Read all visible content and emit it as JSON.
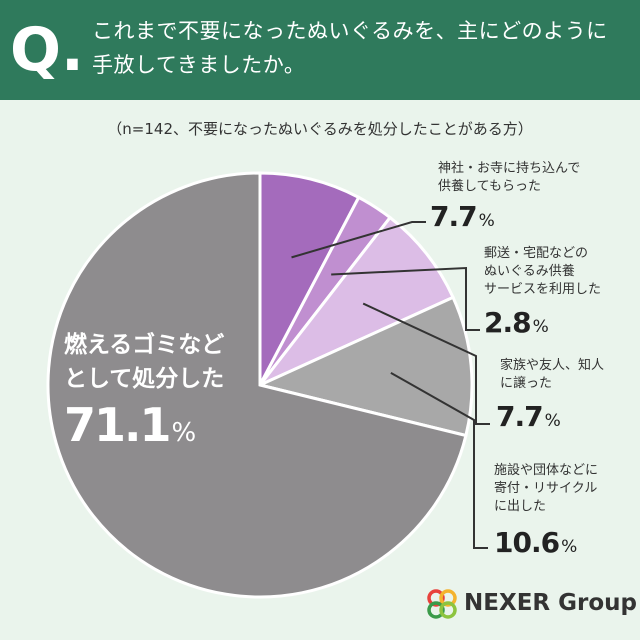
{
  "header": {
    "q_letter": "Q.",
    "question_line1": "これまで不要になったぬいぐるみを、主にどのように",
    "question_line2": "手放してきましたか。"
  },
  "subtitle": "（n=142、不要になったぬいぐるみを処分したことがある方）",
  "colors": {
    "header_bg": "#2f7a5c",
    "page_bg": "#eaf4ec"
  },
  "chart_data": {
    "type": "pie",
    "start": "12 o'clock, clockwise",
    "unit": "%",
    "slices": [
      {
        "label_lines": [
          "神社・お寺に持ち込んで",
          "供養してもらった"
        ],
        "value": 7.7,
        "color": "#a46bbc"
      },
      {
        "label_lines": [
          "郵送・宅配などの",
          "ぬいぐるみ供養",
          "サービスを利用した"
        ],
        "value": 2.8,
        "color": "#c08fd0"
      },
      {
        "label_lines": [
          "家族や友人、知人",
          "に譲った"
        ],
        "value": 7.7,
        "color": "#dcbde6"
      },
      {
        "label_lines": [
          "施設や団体などに",
          "寄付・リサイクル",
          "に出した"
        ],
        "value": 10.6,
        "color": "#a8a8a8"
      },
      {
        "label_lines": [
          "燃えるゴミなど",
          "として処分した"
        ],
        "value": 71.1,
        "color": "#8e8c8e"
      }
    ]
  },
  "logo": {
    "text": "NEXER Group"
  }
}
